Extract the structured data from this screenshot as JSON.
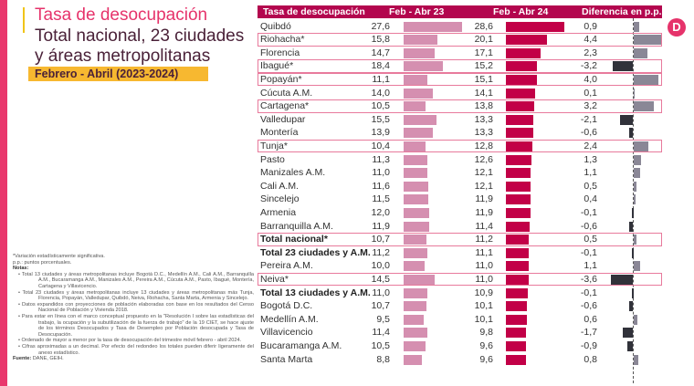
{
  "header": {
    "title": "Tasa de desocupación",
    "subtitle": "Total nacional, 23 ciudades y áreas metropolitanas",
    "period": "Febrero - Abril (2023-2024)"
  },
  "logo": {
    "letter": "D"
  },
  "colors": {
    "side_bar": "#e9386d",
    "title": "#e6336b",
    "header_bg": "#b3064e",
    "bar_2023": "#d58fb0",
    "bar_2024": "#c20047",
    "diff_positive": "#8a8796",
    "diff_negative": "#31323a",
    "highlight": "#e87a9c"
  },
  "notes": {
    "significance": "*Variación estadísticamente significativa.",
    "pp": "p.p.: puntos porcentuales.",
    "heading": "Notas:",
    "items": [
      "• Total 13 ciudades y áreas metropolitanas incluye Bogotá D.C., Medellín A.M., Cali A.M., Barranquilla A.M., Bucaramanga A.M., Manizales A.M., Pereira A.M., Cúcuta A.M., Pasto, Ibagué, Montería, Cartagena y Villavicencio.",
      "• Total 23 ciudades y áreas metropolitanas incluye 13 ciudades y áreas metropolitanas más Tunja, Florencia, Popayán, Valledupar, Quibdó, Neiva, Riohacha, Santa Marta, Armenia y Sincelejo.",
      "• Datos expandidos con proyecciones de población elaboradas con base en los resultados del Censo Nacional de Población y Vivienda 2018.",
      "• Para estar en línea con el marco conceptual propuesto en la \"Resolución I sobre las estadísticas del trabajo, la ocupación y la subutilización de la fuerza de trabajo\" de la 19 CIET, se hace ajuste de los términos Desocupados y Tasa de Desempleo por Población desocupada y Tasa de Desocupación.",
      "• Ordenado de mayor a menor por la tasa de desocupación del trimestre móvil febrero - abril 2024.",
      "• Cifras aproximadas a un decimal. Por efecto del redondeo los totales pueden diferir ligeramente del anexo estadístico."
    ],
    "source_label": "Fuente:",
    "source": " DANE, GEIH."
  },
  "chart_data": {
    "type": "table",
    "title": "Tasa de desocupación",
    "columns": [
      "Tasa de desocupación",
      "Feb - Abr 23",
      "Feb - Abr 24",
      "Diferencia en p.p."
    ],
    "rows": [
      {
        "name": "Quibdó",
        "v2023": "27,6",
        "v2024": "28,6",
        "diff": "0,9",
        "n23": 27.6,
        "n24": 28.6,
        "nd": 0.9,
        "highlight": false,
        "bold": false
      },
      {
        "name": "Riohacha*",
        "v2023": "15,8",
        "v2024": "20,1",
        "diff": "4,4",
        "n23": 15.8,
        "n24": 20.1,
        "nd": 4.4,
        "highlight": true,
        "bold": false
      },
      {
        "name": "Florencia",
        "v2023": "14,7",
        "v2024": "17,1",
        "diff": "2,3",
        "n23": 14.7,
        "n24": 17.1,
        "nd": 2.3,
        "highlight": false,
        "bold": false
      },
      {
        "name": "Ibagué*",
        "v2023": "18,4",
        "v2024": "15,2",
        "diff": "-3,2",
        "n23": 18.4,
        "n24": 15.2,
        "nd": -3.2,
        "highlight": true,
        "bold": false
      },
      {
        "name": "Popayán*",
        "v2023": "11,1",
        "v2024": "15,1",
        "diff": "4,0",
        "n23": 11.1,
        "n24": 15.1,
        "nd": 4.0,
        "highlight": true,
        "bold": false
      },
      {
        "name": "Cúcuta A.M.",
        "v2023": "14,0",
        "v2024": "14,1",
        "diff": "0,1",
        "n23": 14.0,
        "n24": 14.1,
        "nd": 0.1,
        "highlight": false,
        "bold": false
      },
      {
        "name": "Cartagena*",
        "v2023": "10,5",
        "v2024": "13,8",
        "diff": "3,2",
        "n23": 10.5,
        "n24": 13.8,
        "nd": 3.2,
        "highlight": true,
        "bold": false
      },
      {
        "name": "Valledupar",
        "v2023": "15,5",
        "v2024": "13,3",
        "diff": "-2,1",
        "n23": 15.5,
        "n24": 13.3,
        "nd": -2.1,
        "highlight": false,
        "bold": false
      },
      {
        "name": "Montería",
        "v2023": "13,9",
        "v2024": "13,3",
        "diff": "-0,6",
        "n23": 13.9,
        "n24": 13.3,
        "nd": -0.6,
        "highlight": false,
        "bold": false
      },
      {
        "name": "Tunja*",
        "v2023": "10,4",
        "v2024": "12,8",
        "diff": "2,4",
        "n23": 10.4,
        "n24": 12.8,
        "nd": 2.4,
        "highlight": true,
        "bold": false
      },
      {
        "name": "Pasto",
        "v2023": "11,3",
        "v2024": "12,6",
        "diff": "1,3",
        "n23": 11.3,
        "n24": 12.6,
        "nd": 1.3,
        "highlight": false,
        "bold": false
      },
      {
        "name": "Manizales A.M.",
        "v2023": "11,0",
        "v2024": "12,1",
        "diff": "1,1",
        "n23": 11.0,
        "n24": 12.1,
        "nd": 1.1,
        "highlight": false,
        "bold": false
      },
      {
        "name": "Cali A.M.",
        "v2023": "11,6",
        "v2024": "12,1",
        "diff": "0,5",
        "n23": 11.6,
        "n24": 12.1,
        "nd": 0.5,
        "highlight": false,
        "bold": false
      },
      {
        "name": "Sincelejo",
        "v2023": "11,5",
        "v2024": "11,9",
        "diff": "0,4",
        "n23": 11.5,
        "n24": 11.9,
        "nd": 0.4,
        "highlight": false,
        "bold": false
      },
      {
        "name": "Armenia",
        "v2023": "12,0",
        "v2024": "11,9",
        "diff": "-0,1",
        "n23": 12.0,
        "n24": 11.9,
        "nd": -0.1,
        "highlight": false,
        "bold": false
      },
      {
        "name": "Barranquilla A.M.",
        "v2023": "11,9",
        "v2024": "11,4",
        "diff": "-0,6",
        "n23": 11.9,
        "n24": 11.4,
        "nd": -0.6,
        "highlight": false,
        "bold": false
      },
      {
        "name": "Total nacional*",
        "v2023": "10,7",
        "v2024": "11,2",
        "diff": "0,5",
        "n23": 10.7,
        "n24": 11.2,
        "nd": 0.5,
        "highlight": true,
        "bold": true
      },
      {
        "name": "Total 23 ciudades y A.M.",
        "v2023": "11,2",
        "v2024": "11,1",
        "diff": "-0,1",
        "n23": 11.2,
        "n24": 11.1,
        "nd": -0.1,
        "highlight": false,
        "bold": true
      },
      {
        "name": "Pereira A.M.",
        "v2023": "10,0",
        "v2024": "11,0",
        "diff": "1,1",
        "n23": 10.0,
        "n24": 11.0,
        "nd": 1.1,
        "highlight": false,
        "bold": false
      },
      {
        "name": "Neiva*",
        "v2023": "14,5",
        "v2024": "11,0",
        "diff": "-3,6",
        "n23": 14.5,
        "n24": 11.0,
        "nd": -3.6,
        "highlight": true,
        "bold": false
      },
      {
        "name": "Total 13 ciudades y A.M.",
        "v2023": "11,0",
        "v2024": "10,9",
        "diff": "-0,1",
        "n23": 11.0,
        "n24": 10.9,
        "nd": -0.1,
        "highlight": false,
        "bold": true
      },
      {
        "name": "Bogotá D.C.",
        "v2023": "10,7",
        "v2024": "10,1",
        "diff": "-0,6",
        "n23": 10.7,
        "n24": 10.1,
        "nd": -0.6,
        "highlight": false,
        "bold": false
      },
      {
        "name": "Medellín A.M.",
        "v2023": "9,5",
        "v2024": "10,1",
        "diff": "0,6",
        "n23": 9.5,
        "n24": 10.1,
        "nd": 0.6,
        "highlight": false,
        "bold": false
      },
      {
        "name": "Villavicencio",
        "v2023": "11,4",
        "v2024": "9,8",
        "diff": "-1,7",
        "n23": 11.4,
        "n24": 9.8,
        "nd": -1.7,
        "highlight": false,
        "bold": false
      },
      {
        "name": "Bucaramanga A.M.",
        "v2023": "10,5",
        "v2024": "9,6",
        "diff": "-0,9",
        "n23": 10.5,
        "n24": 9.6,
        "nd": -0.9,
        "highlight": false,
        "bold": false
      },
      {
        "name": "Santa Marta",
        "v2023": "8,8",
        "v2024": "9,6",
        "diff": "0,8",
        "n23": 8.8,
        "n24": 9.6,
        "nd": 0.8,
        "highlight": false,
        "bold": false
      }
    ]
  }
}
